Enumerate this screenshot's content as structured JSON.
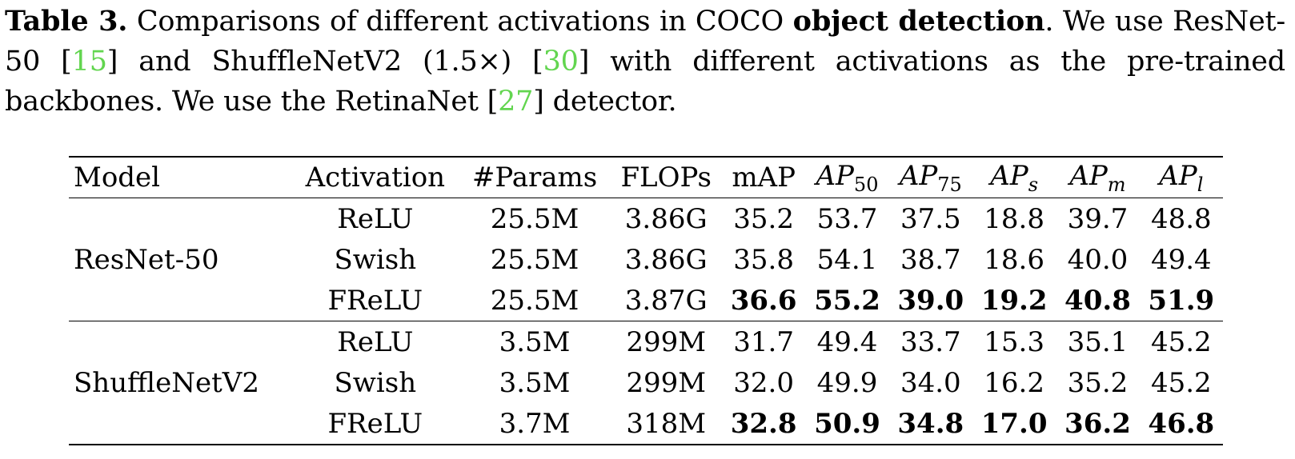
{
  "caption": {
    "label": "Table 3.",
    "t1": " Comparisons of different activations in COCO ",
    "bold": "object detection",
    "t2": ". We use ResNet-50 [",
    "ref1": "15",
    "t3": "] and ShuffleNetV2 (1.5×) [",
    "ref2": "30",
    "t4": "] with different activations as the pre-trained backbones. We use the RetinaNet [",
    "ref3": "27",
    "t5": "] detector."
  },
  "table": {
    "headers": {
      "model": "Model",
      "activation": "Activation",
      "params": "#Params",
      "flops": "FLOPs",
      "map": "mAP",
      "ap50": {
        "base": "AP",
        "sub": "50"
      },
      "ap75": {
        "base": "AP",
        "sub": "75"
      },
      "aps": {
        "base": "AP",
        "sub": "s"
      },
      "apm": {
        "base": "AP",
        "sub": "m"
      },
      "apl": {
        "base": "AP",
        "sub": "l"
      }
    },
    "groups": [
      {
        "model": "ResNet-50",
        "rows": [
          {
            "activation": "ReLU",
            "params": "25.5M",
            "flops": "3.86G",
            "map": "35.2",
            "ap50": "53.7",
            "ap75": "37.5",
            "aps": "18.8",
            "apm": "39.7",
            "apl": "48.8",
            "bold": false
          },
          {
            "activation": "Swish",
            "params": "25.5M",
            "flops": "3.86G",
            "map": "35.8",
            "ap50": "54.1",
            "ap75": "38.7",
            "aps": "18.6",
            "apm": "40.0",
            "apl": "49.4",
            "bold": false
          },
          {
            "activation": "FReLU",
            "params": "25.5M",
            "flops": "3.87G",
            "map": "36.6",
            "ap50": "55.2",
            "ap75": "39.0",
            "aps": "19.2",
            "apm": "40.8",
            "apl": "51.9",
            "bold": true
          }
        ]
      },
      {
        "model": "ShuffleNetV2",
        "rows": [
          {
            "activation": "ReLU",
            "params": "3.5M",
            "flops": "299M",
            "map": "31.7",
            "ap50": "49.4",
            "ap75": "33.7",
            "aps": "15.3",
            "apm": "35.1",
            "apl": "45.2",
            "bold": false
          },
          {
            "activation": "Swish",
            "params": "3.5M",
            "flops": "299M",
            "map": "32.0",
            "ap50": "49.9",
            "ap75": "34.0",
            "aps": "16.2",
            "apm": "35.2",
            "apl": "45.2",
            "bold": false
          },
          {
            "activation": "FReLU",
            "params": "3.7M",
            "flops": "318M",
            "map": "32.8",
            "ap50": "50.9",
            "ap75": "34.8",
            "aps": "17.0",
            "apm": "36.2",
            "apl": "46.8",
            "bold": true
          }
        ]
      }
    ]
  }
}
